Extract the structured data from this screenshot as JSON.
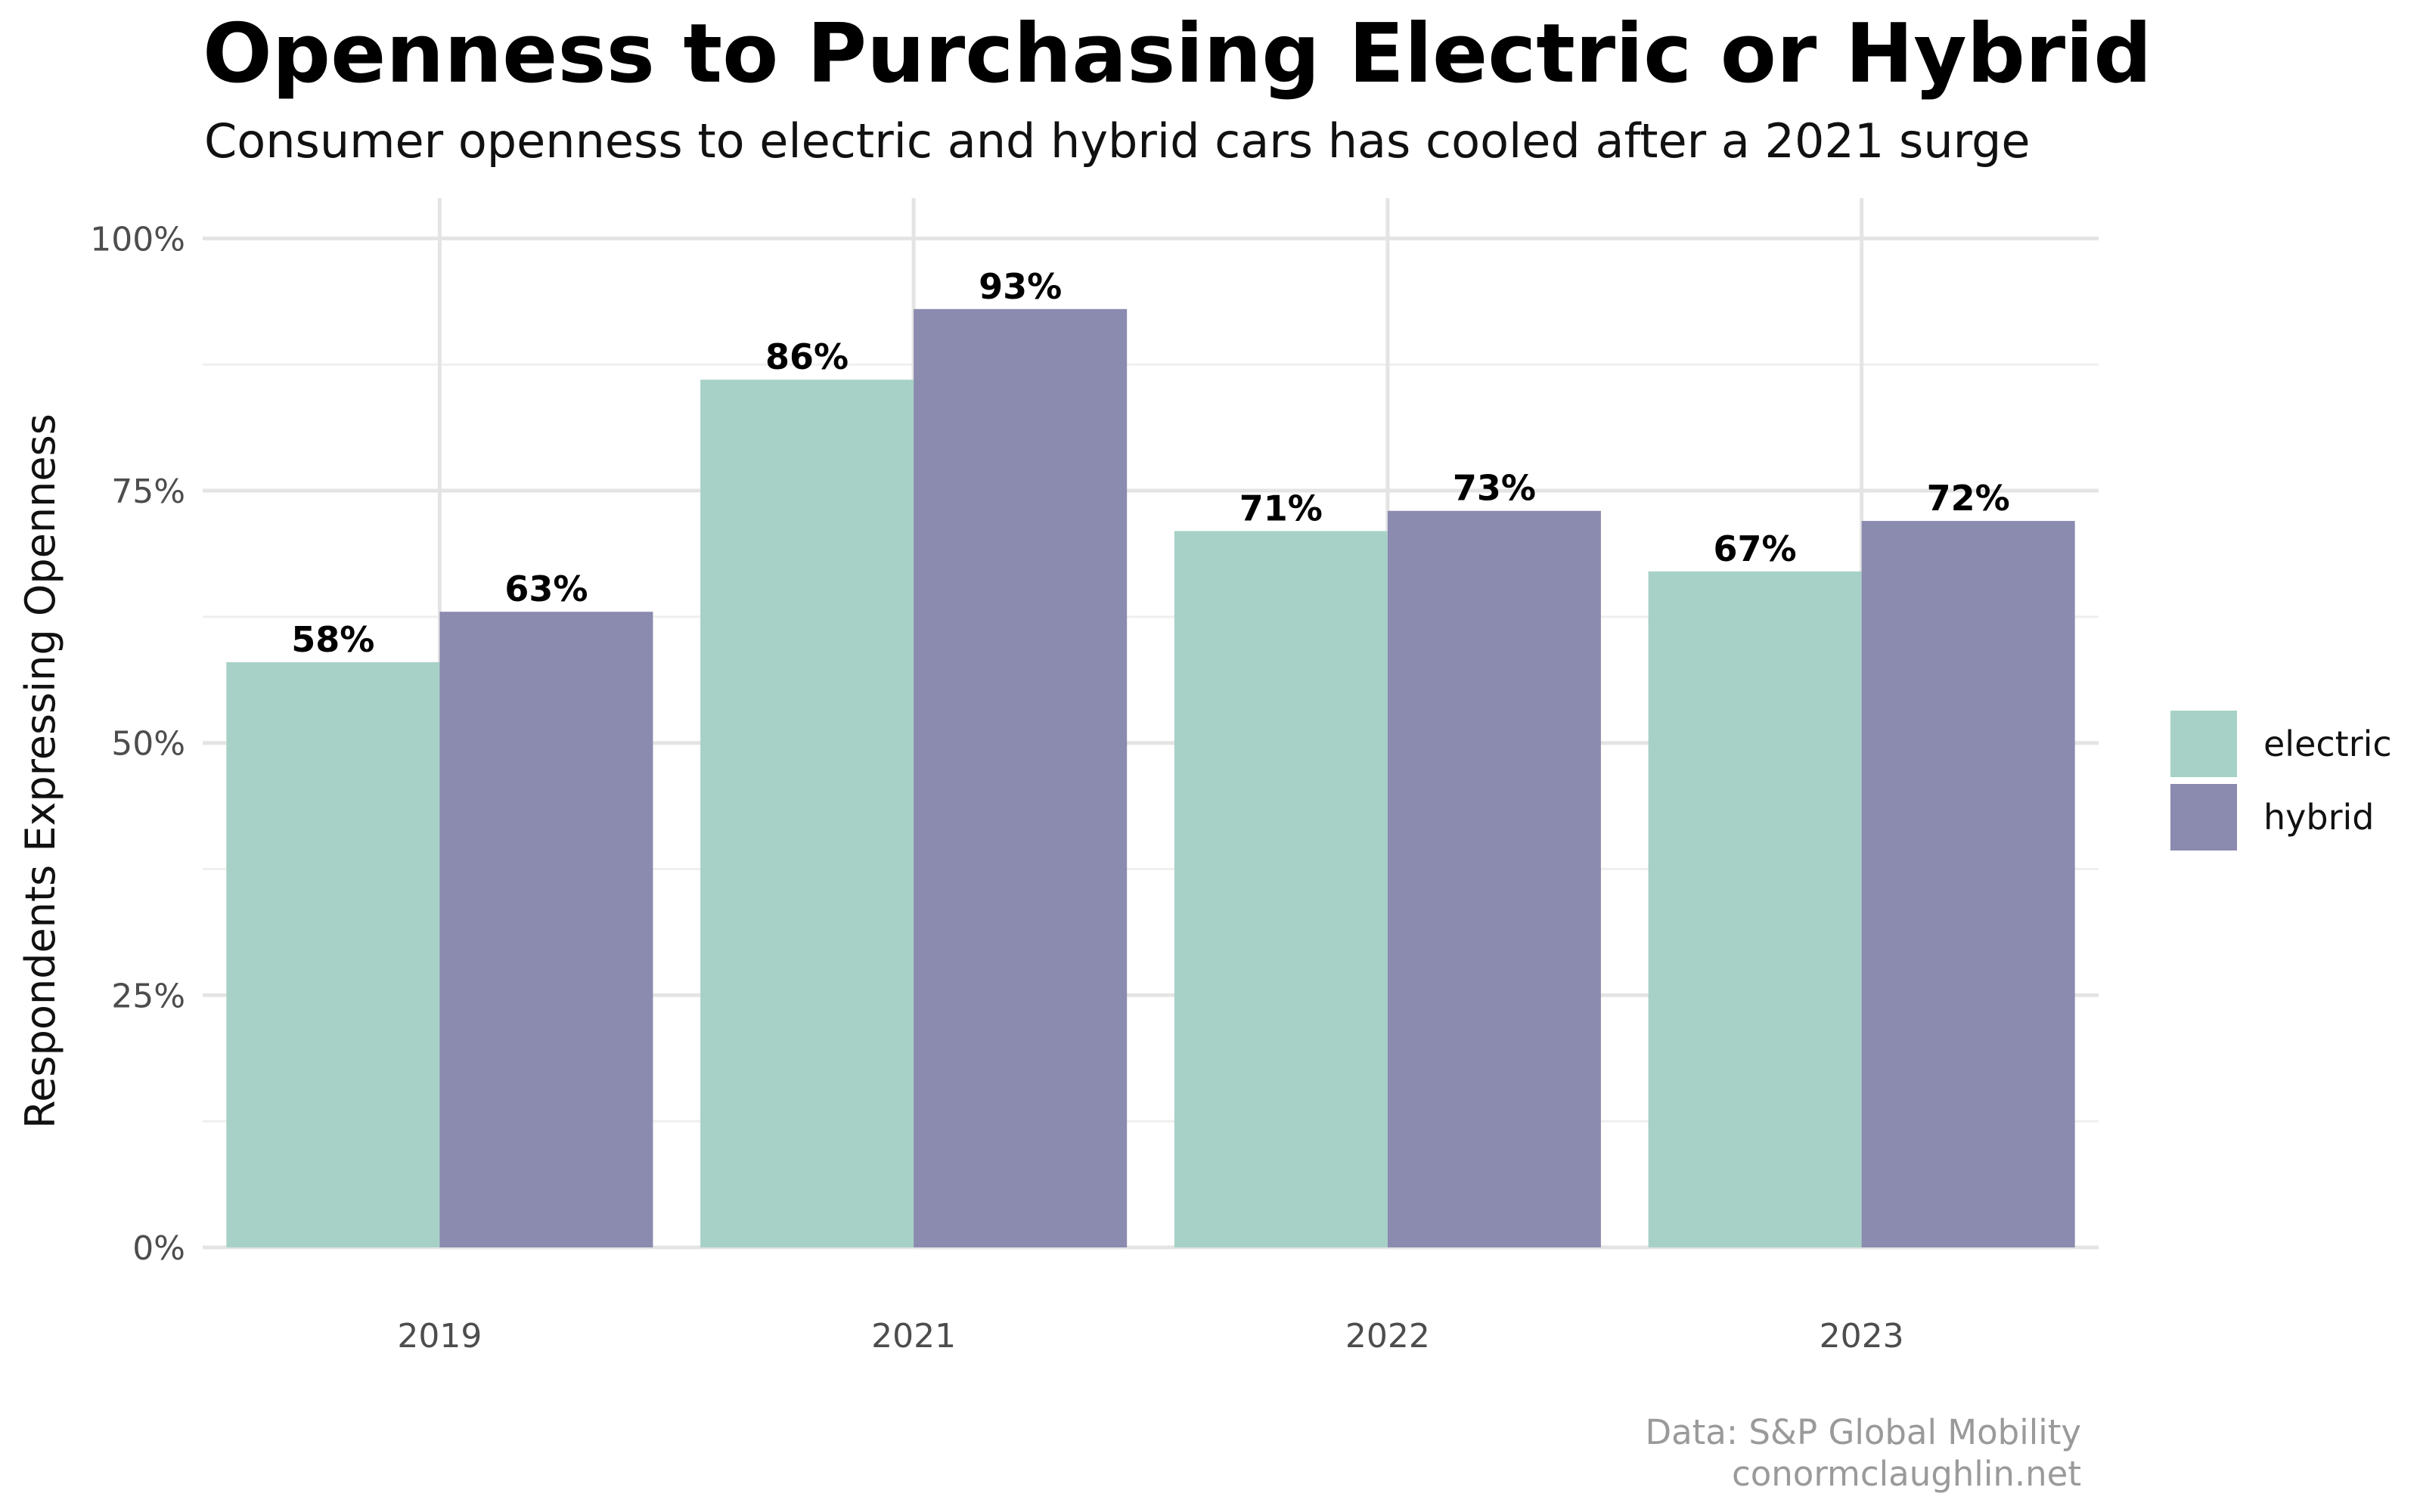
{
  "header": {
    "title": "Openness to Purchasing Electric or Hybrid",
    "subtitle": "Consumer openness to electric and hybrid cars has cooled after a 2021 surge"
  },
  "caption": {
    "line1": "Data: S&P Global Mobility",
    "line2": "conormclaughlin.net"
  },
  "chart_data": {
    "type": "bar",
    "categories": [
      "2019",
      "2021",
      "2022",
      "2023"
    ],
    "series": [
      {
        "name": "electric",
        "values": [
          58,
          86,
          71,
          67
        ],
        "labels": [
          "58%",
          "86%",
          "71%",
          "67%"
        ],
        "color": "#a7d1c7"
      },
      {
        "name": "hybrid",
        "values": [
          63,
          93,
          73,
          72
        ],
        "labels": [
          "63%",
          "93%",
          "73%",
          "72%"
        ],
        "color": "#8b8aaf"
      }
    ],
    "ylabel": "Respondents Expressing Openness",
    "xlabel": "",
    "ylim": [
      0,
      100
    ],
    "yticks": [
      0,
      25,
      50,
      75,
      100
    ],
    "ytick_labels": [
      "0%",
      "25%",
      "50%",
      "75%",
      "100%"
    ],
    "grid": true,
    "legend_position": "right"
  }
}
